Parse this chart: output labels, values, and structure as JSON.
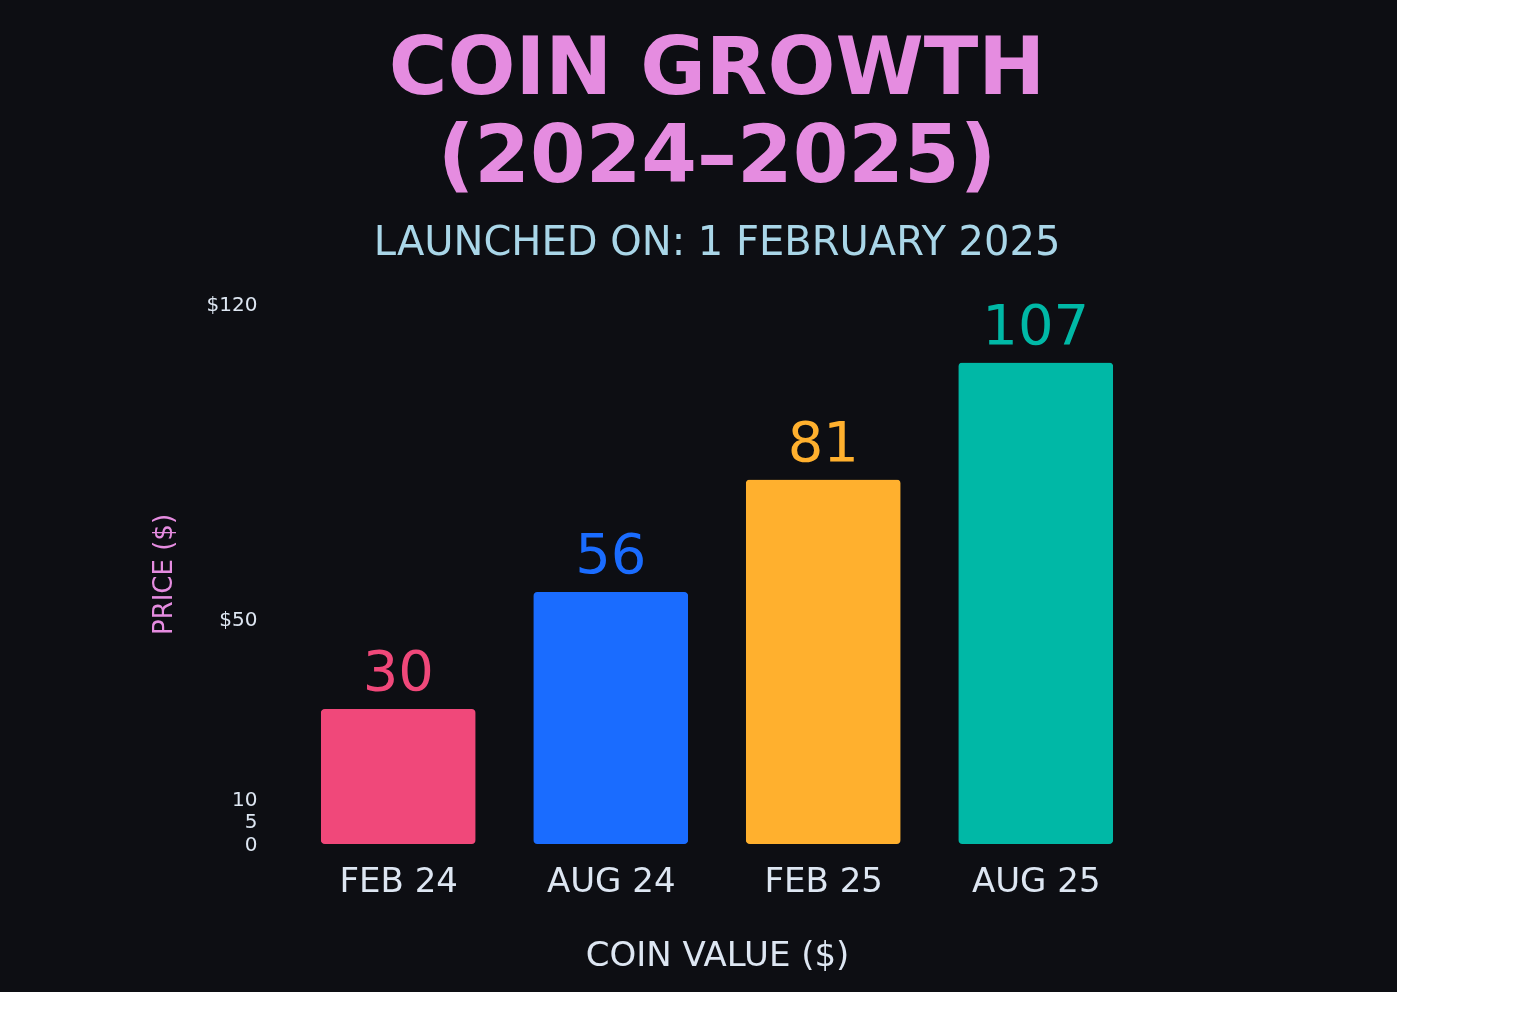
{
  "chart_data": {
    "type": "bar",
    "title": "COIN GROWTH\n(2024–2025)",
    "subtitle": "LAUNCHED ON: 1 FEBRUARY 2025",
    "ylabel": "PRICE ($)",
    "xlabel": "COIN VALUE ($)",
    "categories": [
      "FEB 24",
      "AUG 24",
      "FEB 25",
      "AUG 25"
    ],
    "values": [
      30,
      56,
      81,
      107
    ],
    "colors": [
      "#f0487a",
      "#1a6cff",
      "#ffb02e",
      "#00b8a6"
    ],
    "ylim": [
      0,
      120
    ],
    "yticks": [
      0,
      5,
      10,
      {
        "value": 50,
        "label": "$50"
      },
      {
        "value": 120,
        "label": "$120"
      }
    ],
    "data_labels": true,
    "grid": false,
    "legend": false
  }
}
